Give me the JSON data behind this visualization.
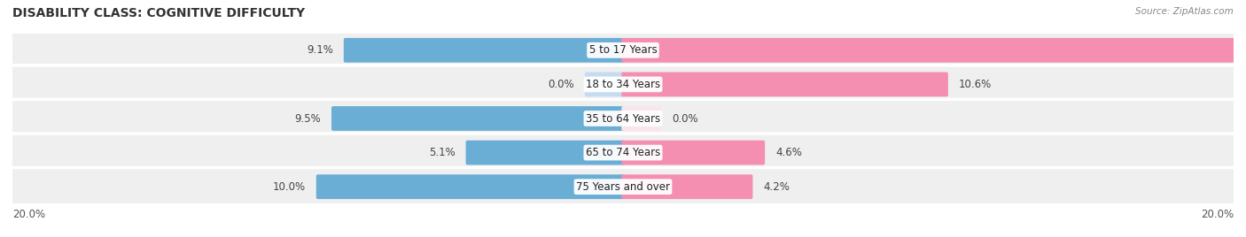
{
  "title": "DISABILITY CLASS: COGNITIVE DIFFICULTY",
  "source": "Source: ZipAtlas.com",
  "categories": [
    "5 to 17 Years",
    "18 to 34 Years",
    "35 to 64 Years",
    "65 to 74 Years",
    "75 Years and over"
  ],
  "male_values": [
    9.1,
    0.0,
    9.5,
    5.1,
    10.0
  ],
  "female_values": [
    20.0,
    10.6,
    0.0,
    4.6,
    4.2
  ],
  "max_val": 20.0,
  "male_color": "#6aaed6",
  "male_color_light": "#c6dbef",
  "female_color": "#f48fb1",
  "female_color_light": "#fce4ec",
  "row_bg_color": "#efefef",
  "row_border_color": "#d8d8d8",
  "title_fontsize": 10,
  "value_fontsize": 8.5,
  "cat_fontsize": 8.5,
  "tick_fontsize": 8.5
}
